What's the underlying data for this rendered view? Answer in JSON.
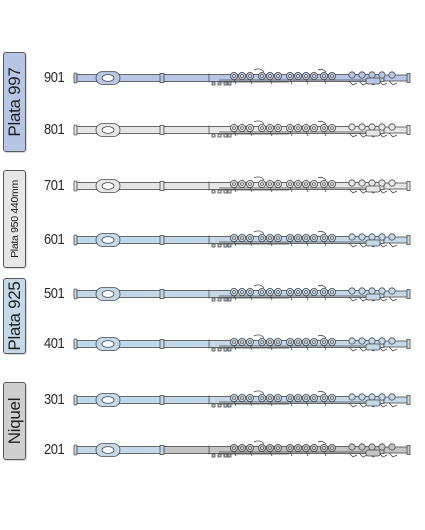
{
  "colors": {
    "silver_997": "#b8c6e6",
    "silver_950": "#e6e6e6",
    "silver_925": "#c4d8e8",
    "nickel": "#c4c4c4",
    "outline": "#4a4a4a"
  },
  "groups": [
    {
      "label": "Plata 997",
      "color": "#b8c6e6"
    },
    {
      "label": "Plata 950 440mm",
      "color": "#e6e6e6"
    },
    {
      "label": "Plata 925",
      "color": "#c4d8e8"
    },
    {
      "label": "Niquel",
      "color": "#cfcfcf"
    }
  ],
  "models": [
    {
      "number": "901",
      "head": "#b8c6e6",
      "body": "#b8c6e6",
      "foot": "#b8c6e6"
    },
    {
      "number": "801",
      "head": "#e6e6e6",
      "body": "#e6e6e6",
      "foot": "#e6e6e6"
    },
    {
      "number": "701",
      "head": "#e6e6e6",
      "body": "#e6e6e6",
      "foot": "#e6e6e6"
    },
    {
      "number": "601",
      "head": "#c4d8e8",
      "body": "#c4d8e8",
      "foot": "#c4d8e8"
    },
    {
      "number": "501",
      "head": "#c4d8e8",
      "body": "#c4d8e8",
      "foot": "#c4d8e8"
    },
    {
      "number": "401",
      "head": "#c4d8e8",
      "body": "#c4d8e8",
      "foot": "#c4d8e8"
    },
    {
      "number": "301",
      "head": "#c4d8e8",
      "body": "#c4d8e8",
      "foot": "#c4d8e8"
    },
    {
      "number": "201",
      "head": "#c4d8e8",
      "body": "#c4c4c4",
      "foot": "#c4c4c4"
    }
  ]
}
